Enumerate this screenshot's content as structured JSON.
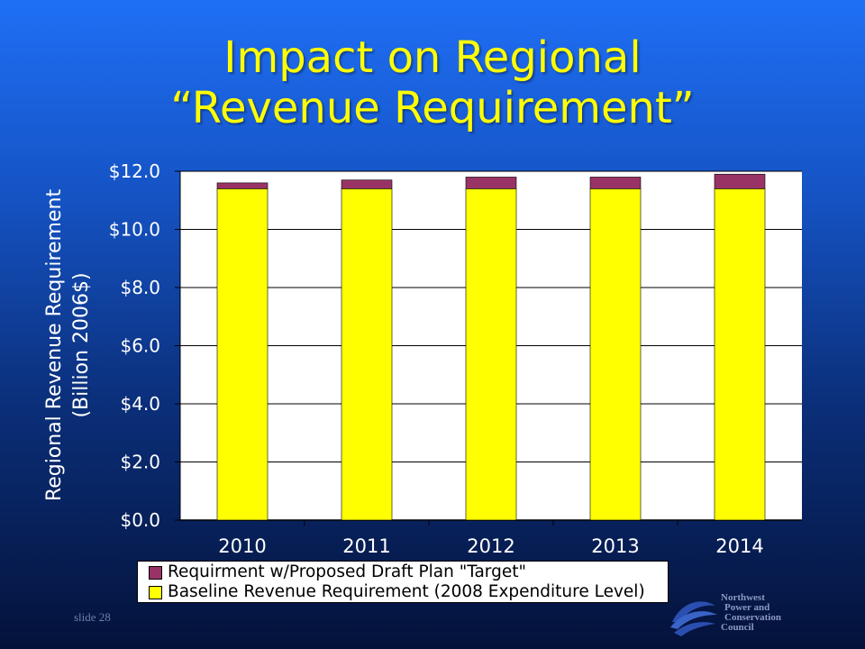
{
  "slide": {
    "title_line1": "Impact on Regional",
    "title_line2": "“Revenue Requirement”",
    "number_label": "slide 28"
  },
  "logo": {
    "line1": "Northwest",
    "line2": "Power and",
    "line3": "Conservation",
    "line4": "Council"
  },
  "chart_data": {
    "type": "bar",
    "stacked": true,
    "categories": [
      "2010",
      "2011",
      "2012",
      "2013",
      "2014"
    ],
    "series": [
      {
        "name": "Baseline Revenue Requirement (2008 Expenditure Level)",
        "color": "#ffff00",
        "values": [
          11.4,
          11.4,
          11.4,
          11.4,
          11.4
        ]
      },
      {
        "name": "Requirment w/Proposed Draft Plan \"Target\"",
        "color": "#993366",
        "values": [
          0.2,
          0.3,
          0.4,
          0.4,
          0.5
        ]
      }
    ],
    "ylabel_line1": "Regional Revenue Requirement",
    "ylabel_line2": "(Billion 2006$)",
    "ytick_labels": [
      "$0.0",
      "$2.0",
      "$4.0",
      "$6.0",
      "$8.0",
      "$10.0",
      "$12.0"
    ],
    "ylim": [
      0,
      12
    ],
    "ytick_step": 2,
    "grid": true,
    "legend_position": "bottom"
  },
  "colors": {
    "plot_background": "#ffffff",
    "gridline": "#000000",
    "title": "#ffff00"
  }
}
